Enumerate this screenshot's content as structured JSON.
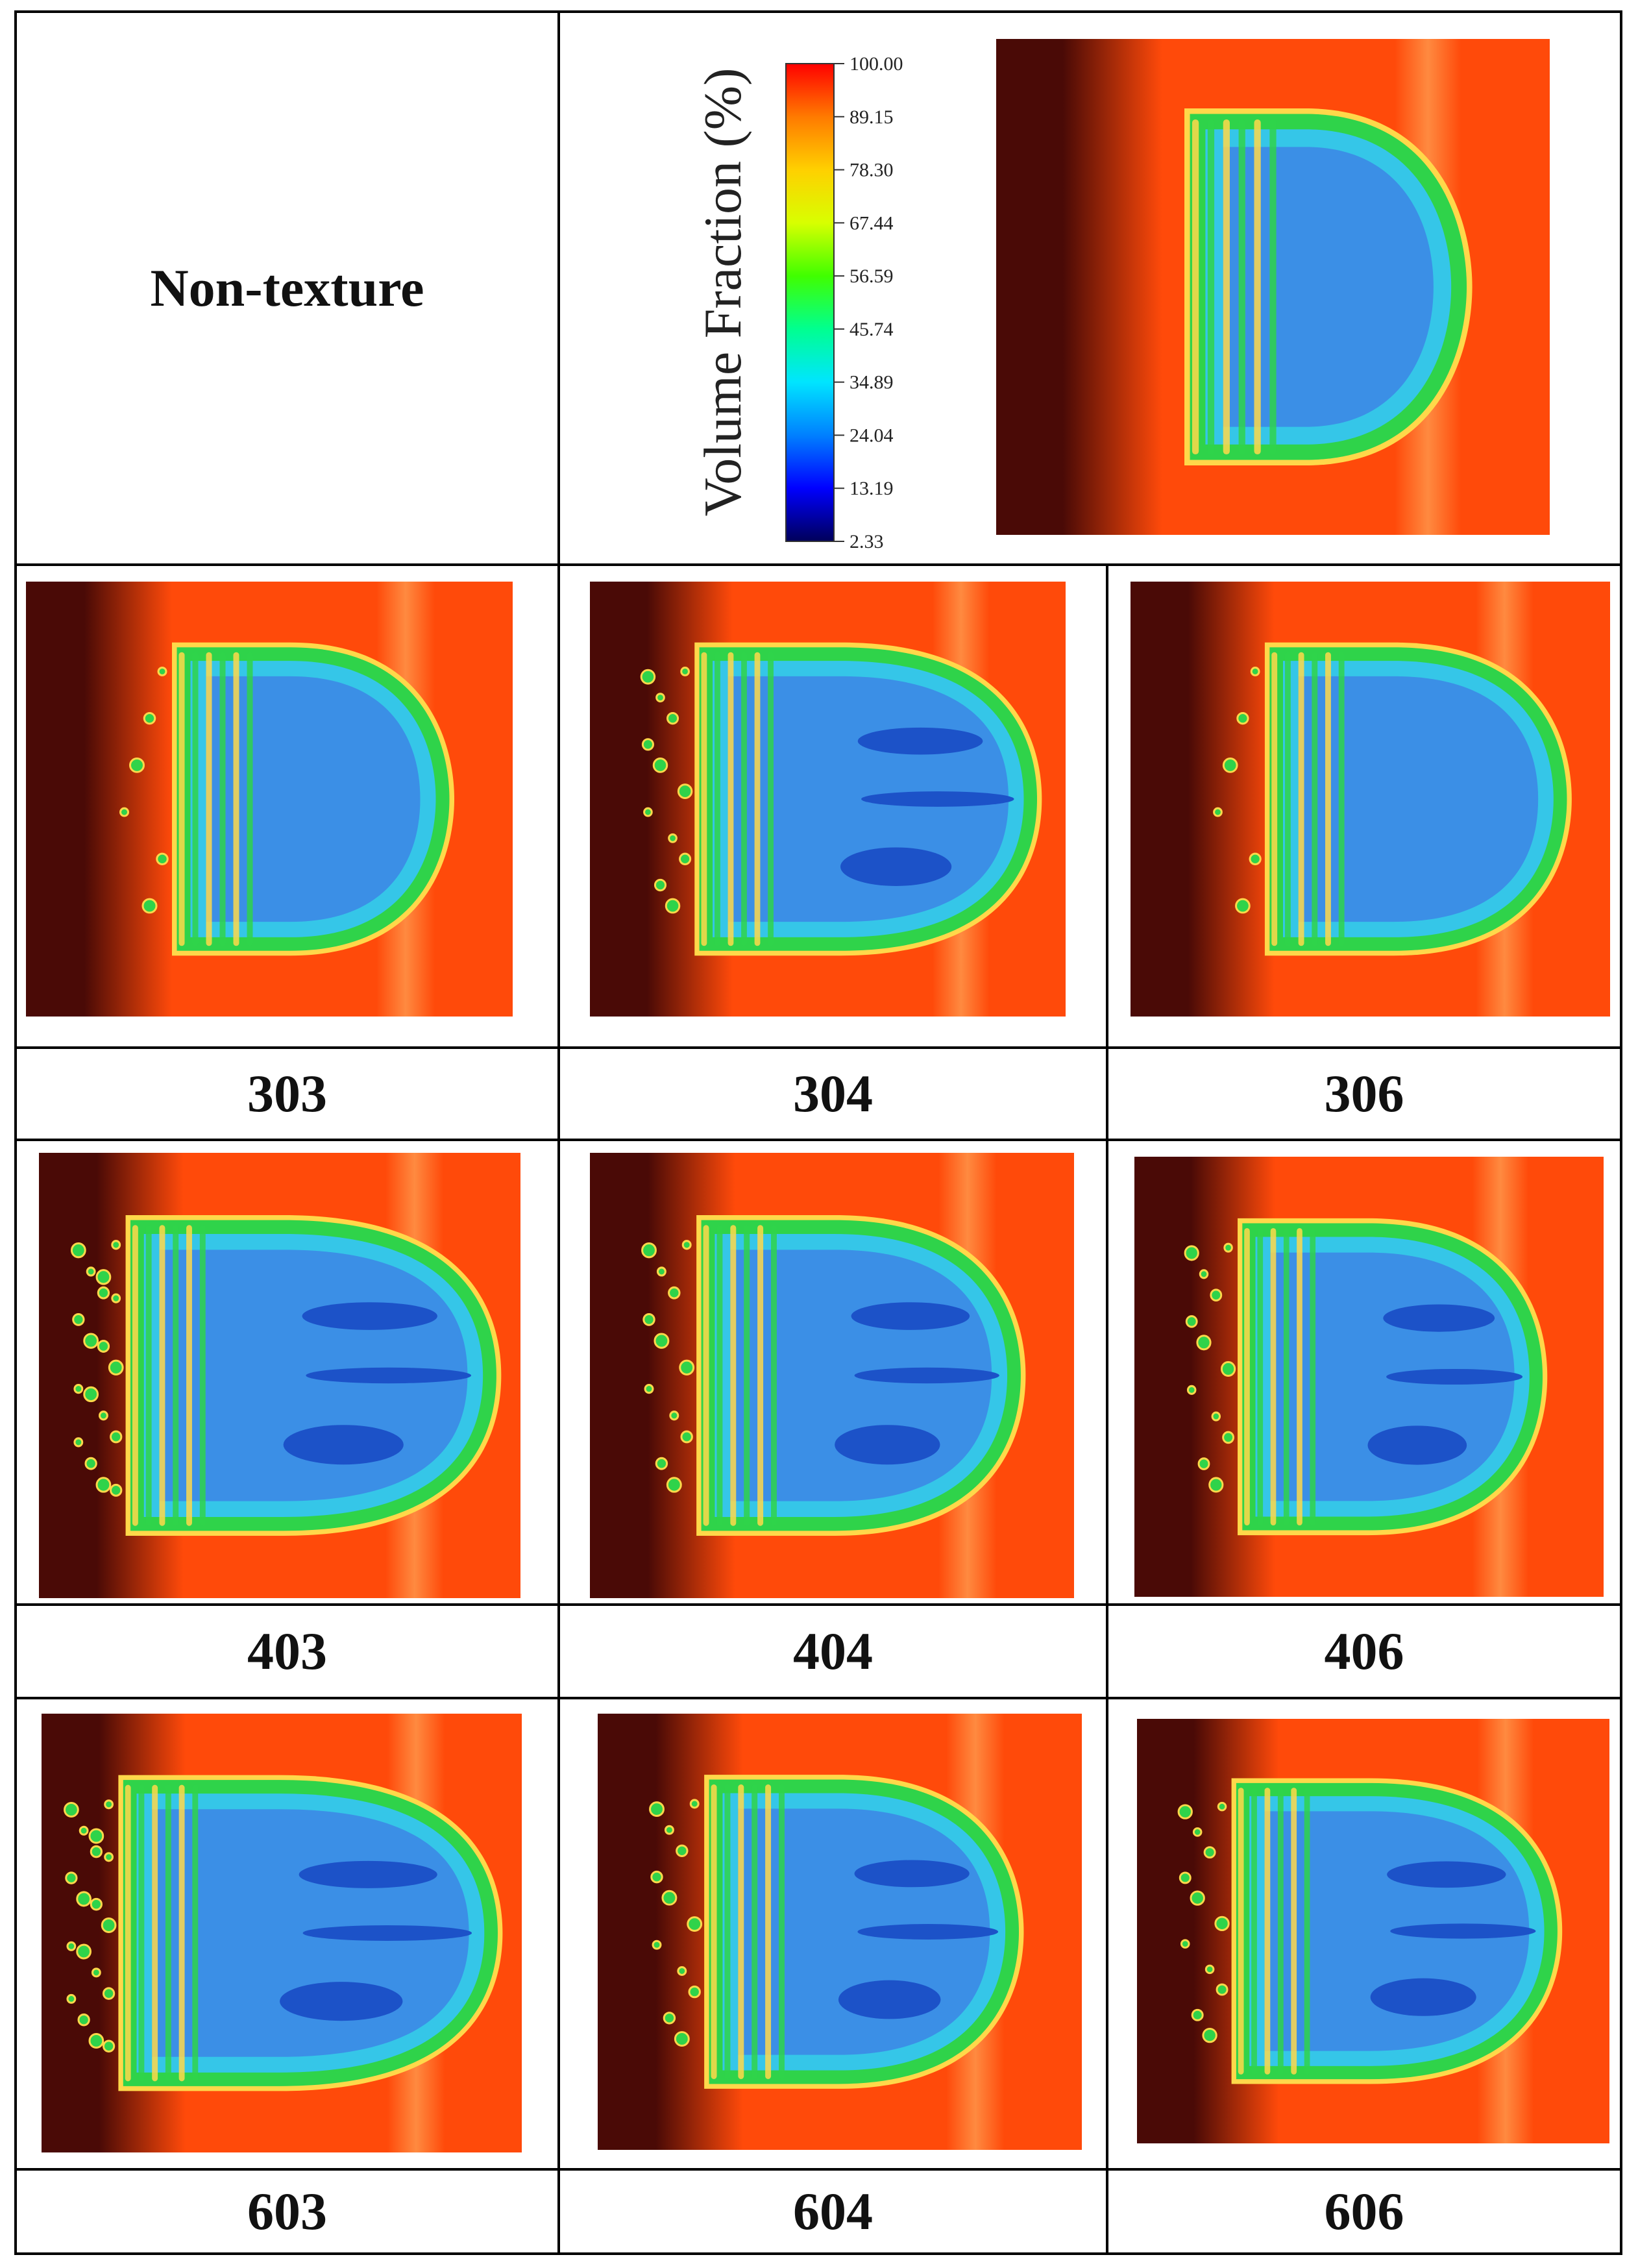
{
  "header": {
    "reference_label": "Non-texture",
    "legend": {
      "title": "Volume Fraction (%)",
      "ticks": [
        "100.00",
        "89.15",
        "78.30",
        "67.44",
        "56.59",
        "45.74",
        "34.89",
        "24.04",
        "13.19",
        "2.33"
      ],
      "colormap": [
        "#00005a",
        "#0000ff",
        "#0080ff",
        "#00e5ff",
        "#00ff90",
        "#40ff00",
        "#d8ff00",
        "#ffd000",
        "#ff7a00",
        "#ff0000"
      ]
    }
  },
  "cases": [
    {
      "label": "303"
    },
    {
      "label": "304"
    },
    {
      "label": "306"
    },
    {
      "label": "403"
    },
    {
      "label": "404"
    },
    {
      "label": "406"
    },
    {
      "label": "603"
    },
    {
      "label": "604"
    },
    {
      "label": "606"
    }
  ],
  "colors": {
    "background_dark": "#4a0a06",
    "background_main": "#ff4a0a",
    "background_highlight": "#ff8a40",
    "rim": "#ffd84a",
    "outer_green": "#2fd34a",
    "mid_cyan": "#35c6e8",
    "inner_blue": "#3b8fe6",
    "deep_blue": "#1c52c8"
  }
}
